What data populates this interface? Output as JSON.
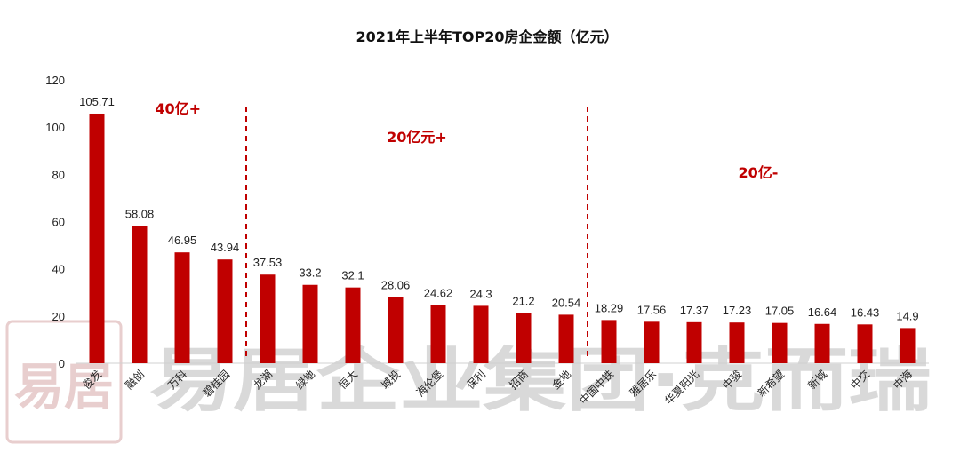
{
  "chart_data": {
    "type": "bar",
    "title": "2021年上半年TOP20房企金额（亿元）",
    "categories": [
      "俊发",
      "融创",
      "万科",
      "碧桂园",
      "龙湖",
      "绿地",
      "恒大",
      "城投",
      "海伦堡",
      "保利",
      "招商",
      "金地",
      "中国中铁",
      "雅居乐",
      "华夏阳光",
      "中骏",
      "新希望",
      "新城",
      "中交",
      "中海"
    ],
    "series": [
      {
        "values": [
          105.71,
          58.08,
          46.95,
          43.94,
          37.53,
          33.2,
          32.1,
          28.06,
          24.62,
          24.3,
          21.2,
          20.54,
          18.29,
          17.56,
          17.37,
          17.23,
          17.05,
          16.64,
          16.43,
          14.9
        ]
      }
    ],
    "data_labels": [
      "105.71",
      "58.08",
      "46.95",
      "43.94",
      "37.53",
      "33.2",
      "32.1",
      "28.06",
      "24.62",
      "24.3",
      "21.2",
      "20.54",
      "18.29",
      "17.56",
      "17.37",
      "17.23",
      "17.05",
      "16.64",
      "16.43",
      "14.9"
    ],
    "ylim": [
      0,
      120
    ],
    "yticks": [
      0,
      20,
      40,
      60,
      80,
      100,
      120
    ],
    "bar_color": "#c00000",
    "grid": false,
    "annotations": [
      {
        "text": "40亿+",
        "group_start": 0,
        "group_end": 3
      },
      {
        "text": "20亿元+",
        "group_start": 4,
        "group_end": 11
      },
      {
        "text": "20亿-",
        "group_start": 12,
        "group_end": 19
      }
    ],
    "divider_color": "#c00000"
  },
  "watermark": {
    "text": "易居企业集团·克而瑞",
    "stamp": "易居",
    "color": "#d9d9d9"
  }
}
